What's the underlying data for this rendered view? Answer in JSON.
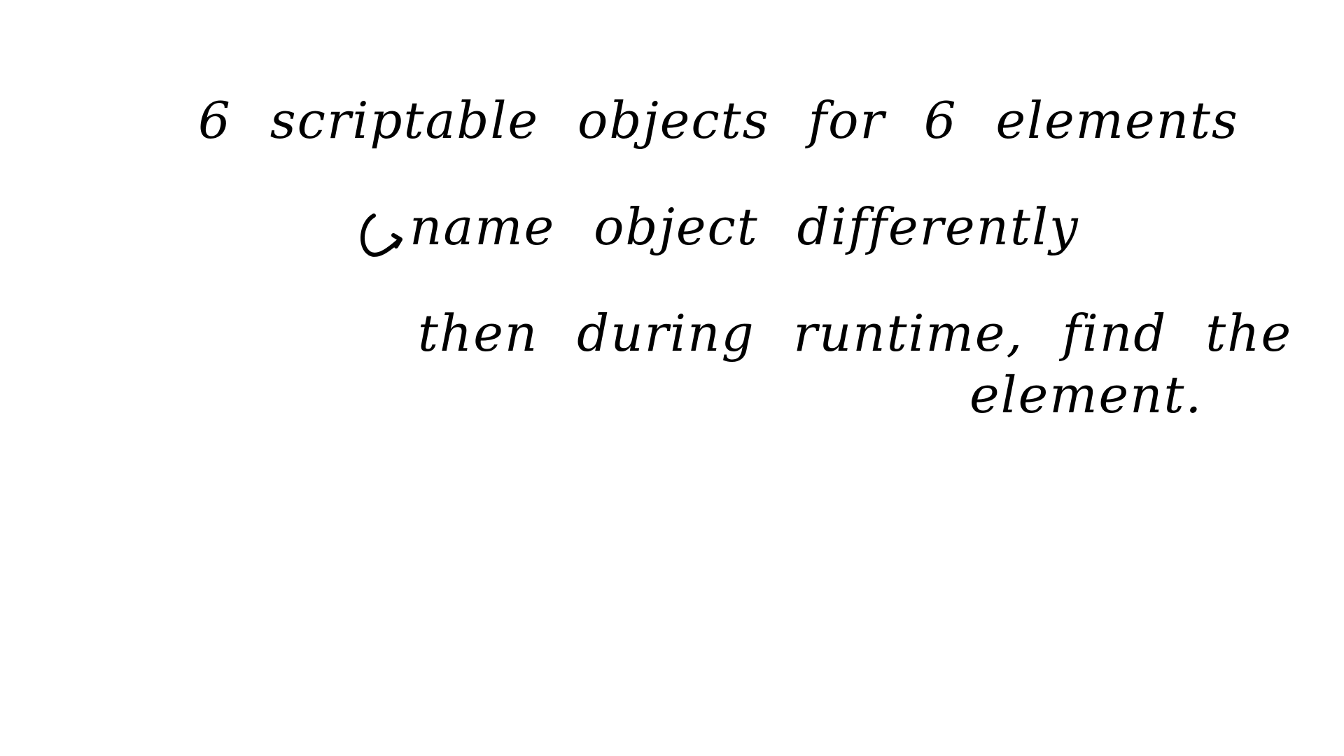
{
  "note": {
    "line_1": "6 scriptable objects for 6 elements",
    "line_2": "name object differently",
    "line_2_marker": "arrow-turn-right-icon",
    "line_3": "then during runtime, find the",
    "line_4": "element."
  },
  "colors": {
    "background": "#ffffff",
    "ink": "#000000"
  }
}
